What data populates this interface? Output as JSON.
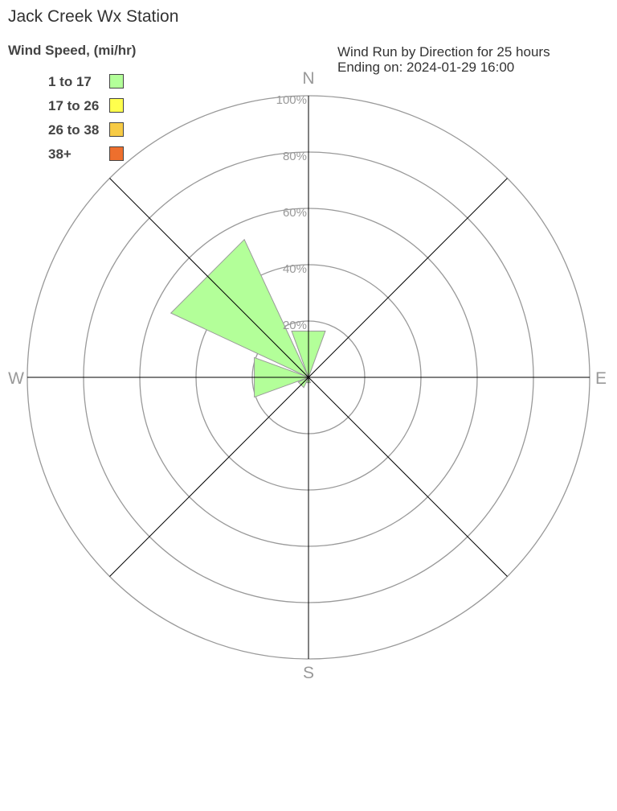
{
  "title": "Jack Creek Wx Station",
  "chart_data": {
    "type": "wind-rose",
    "subtitle_lines": [
      "Wind Run by Direction for 25 hours",
      "Ending on: 2024-01-29 16:00"
    ],
    "legend_title": "Wind Speed, (mi/hr)",
    "legend": [
      {
        "label": "1 to 17",
        "color": "#b3ff99"
      },
      {
        "label": "17 to 26",
        "color": "#ffff4d"
      },
      {
        "label": "26 to 38",
        "color": "#f7cb45"
      },
      {
        "label": "38+",
        "color": "#ee6f2d"
      }
    ],
    "compass_labels": [
      "N",
      "E",
      "S",
      "W"
    ],
    "radial_ticks": [
      "20%",
      "40%",
      "60%",
      "80%",
      "100%"
    ],
    "radial_range": [
      0,
      100
    ],
    "directions_deg": [
      0,
      45,
      90,
      135,
      180,
      225,
      270,
      315
    ],
    "series": [
      {
        "name": "1 to 17",
        "values": [
          17.5,
          0,
          0,
          0,
          2,
          4,
          20.5,
          54
        ]
      }
    ]
  }
}
